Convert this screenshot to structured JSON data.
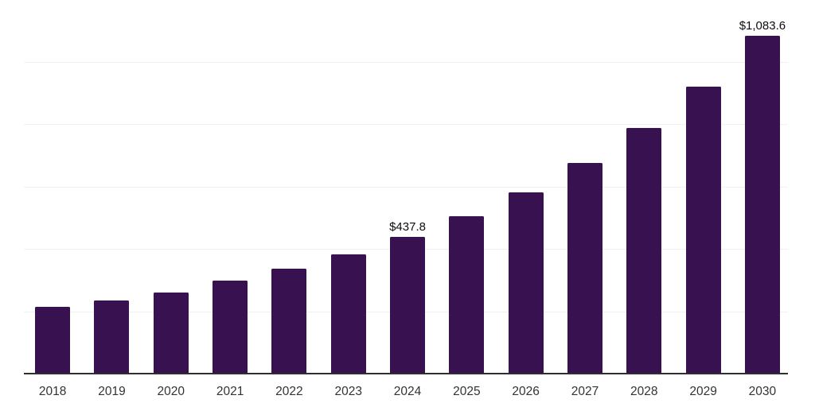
{
  "chart_data": {
    "type": "bar",
    "title": "",
    "xlabel": "",
    "ylabel": "",
    "categories": [
      "2018",
      "2019",
      "2020",
      "2021",
      "2022",
      "2023",
      "2024",
      "2025",
      "2026",
      "2027",
      "2028",
      "2029",
      "2030"
    ],
    "values": [
      214.0,
      234.4,
      259.9,
      298.1,
      336.3,
      382.2,
      437.8,
      504.5,
      581.0,
      675.2,
      787.3,
      919.8,
      1083.6
    ],
    "bar_labels": [
      "",
      "",
      "",
      "",
      "",
      "",
      "$437.8",
      "",
      "",
      "",
      "",
      "",
      "$1,083.6"
    ],
    "ylim": [
      0,
      1200
    ],
    "gridline_step": 200,
    "grid": true,
    "legend": false,
    "y_axis_tick_labels_visible": false,
    "colors": {
      "bar": "#371150",
      "axis_line": "#2f2f2f",
      "gridline": "#f0f0f1",
      "data_label": "#0d0d0d",
      "tick_label": "#333333",
      "background": "#ffffff"
    }
  }
}
